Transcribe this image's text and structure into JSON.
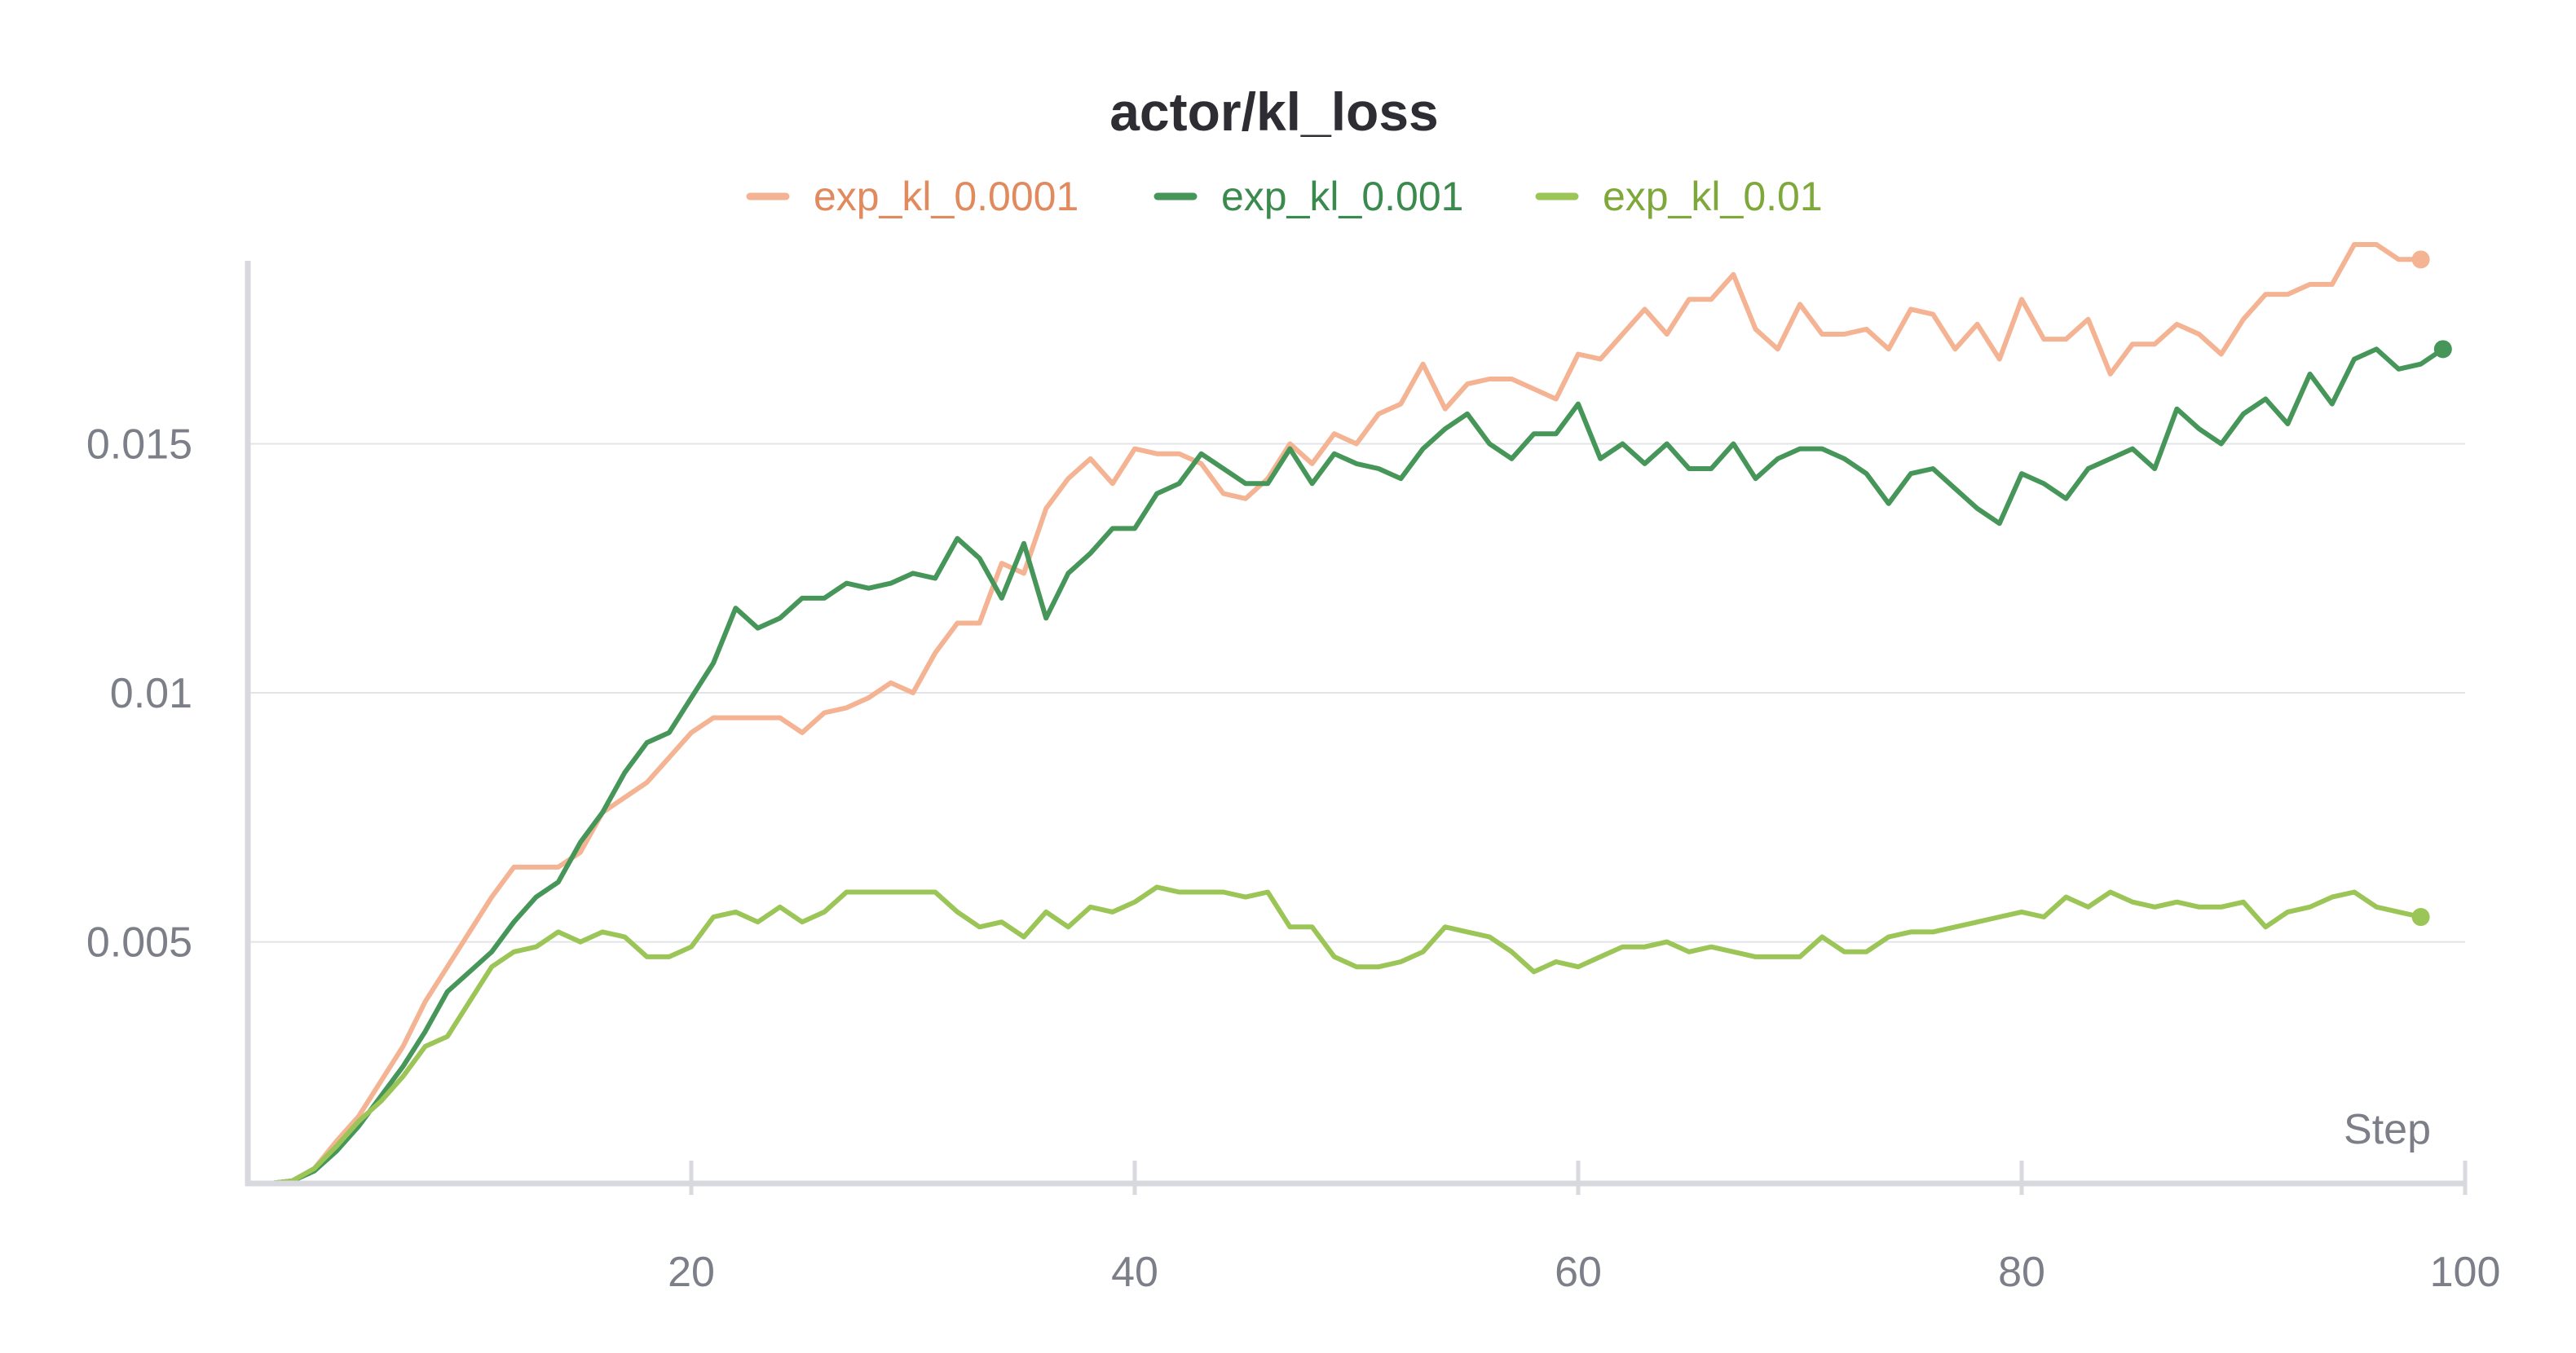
{
  "chart_data": {
    "type": "line",
    "title": "actor/kl_loss",
    "xlabel": "Step",
    "ylabel": "",
    "xlim": [
      0,
      100
    ],
    "ylim": [
      0.00015,
      0.019
    ],
    "x_ticks": [
      20,
      40,
      60,
      80,
      100
    ],
    "x_tick_labels": [
      "20",
      "40",
      "60",
      "80",
      "100"
    ],
    "y_ticks": [
      0.005,
      0.01,
      0.015
    ],
    "y_tick_labels": [
      "0.005",
      "0.01",
      "0.015"
    ],
    "grid": true,
    "legend_position": "top-center",
    "series": [
      {
        "name": "exp_kl_0.0001",
        "color": "#f4b393",
        "label_color": "#e08a5e",
        "x_start": 1,
        "values": [
          0.00015,
          0.0002,
          0.00045,
          0.001,
          0.0015,
          0.0022,
          0.0029,
          0.0038,
          0.0045,
          0.0052,
          0.0059,
          0.0065,
          0.0065,
          0.0065,
          0.0068,
          0.0076,
          0.0079,
          0.0082,
          0.0087,
          0.0092,
          0.0095,
          0.0095,
          0.0095,
          0.0095,
          0.0092,
          0.0096,
          0.0097,
          0.0099,
          0.0102,
          0.01,
          0.0108,
          0.0114,
          0.0114,
          0.0126,
          0.0124,
          0.0137,
          0.0143,
          0.0147,
          0.0142,
          0.0149,
          0.0148,
          0.0148,
          0.0146,
          0.014,
          0.0139,
          0.0143,
          0.015,
          0.0146,
          0.0152,
          0.015,
          0.0156,
          0.0158,
          0.0166,
          0.0157,
          0.0162,
          0.0163,
          0.0163,
          0.0161,
          0.0159,
          0.0168,
          0.0167,
          0.0172,
          0.0177,
          0.0172,
          0.0179,
          0.0179,
          0.0184,
          0.0173,
          0.0169,
          0.0178,
          0.0172,
          0.0172,
          0.0173,
          0.0169,
          0.0177,
          0.0176,
          0.0169,
          0.0174,
          0.0167,
          0.0179,
          0.0171,
          0.0171,
          0.0175,
          0.0164,
          0.017,
          0.017,
          0.0174,
          0.0172,
          0.0168,
          0.0175,
          0.018,
          0.018,
          0.0182,
          0.0182,
          0.019,
          0.019,
          0.0187,
          0.0187
        ]
      },
      {
        "name": "exp_kl_0.001",
        "color": "#46965a",
        "label_color": "#3a8a4e",
        "x_start": 1,
        "values": [
          0.00015,
          0.0002,
          0.0004,
          0.0008,
          0.0013,
          0.0019,
          0.0025,
          0.0032,
          0.004,
          0.0044,
          0.0048,
          0.0054,
          0.0059,
          0.0062,
          0.007,
          0.0076,
          0.0084,
          0.009,
          0.0092,
          0.0099,
          0.0106,
          0.0117,
          0.0113,
          0.0115,
          0.0119,
          0.0119,
          0.0122,
          0.0121,
          0.0122,
          0.0124,
          0.0123,
          0.0131,
          0.0127,
          0.0119,
          0.013,
          0.0115,
          0.0124,
          0.0128,
          0.0133,
          0.0133,
          0.014,
          0.0142,
          0.0148,
          0.0145,
          0.0142,
          0.0142,
          0.0149,
          0.0142,
          0.0148,
          0.0146,
          0.0145,
          0.0143,
          0.0149,
          0.0153,
          0.0156,
          0.015,
          0.0147,
          0.0152,
          0.0152,
          0.0158,
          0.0147,
          0.015,
          0.0146,
          0.015,
          0.0145,
          0.0145,
          0.015,
          0.0143,
          0.0147,
          0.0149,
          0.0149,
          0.0147,
          0.0144,
          0.0138,
          0.0144,
          0.0145,
          0.0141,
          0.0137,
          0.0134,
          0.0144,
          0.0142,
          0.0139,
          0.0145,
          0.0147,
          0.0149,
          0.0145,
          0.0157,
          0.0153,
          0.015,
          0.0156,
          0.0159,
          0.0154,
          0.0164,
          0.0158,
          0.0167,
          0.0169,
          0.0165,
          0.0166,
          0.0169
        ]
      },
      {
        "name": "exp_kl_0.01",
        "color": "#9cc557",
        "label_color": "#7ea83a",
        "x_start": 1,
        "values": [
          0.00015,
          0.0002,
          0.00045,
          0.0009,
          0.0014,
          0.0018,
          0.0023,
          0.0029,
          0.0031,
          0.0038,
          0.0045,
          0.0048,
          0.0049,
          0.0052,
          0.005,
          0.0052,
          0.0051,
          0.0047,
          0.0047,
          0.0049,
          0.0055,
          0.0056,
          0.0054,
          0.0057,
          0.0054,
          0.0056,
          0.006,
          0.006,
          0.006,
          0.006,
          0.006,
          0.0056,
          0.0053,
          0.0054,
          0.0051,
          0.0056,
          0.0053,
          0.0057,
          0.0056,
          0.0058,
          0.0061,
          0.006,
          0.006,
          0.006,
          0.0059,
          0.006,
          0.0053,
          0.0053,
          0.0047,
          0.0045,
          0.0045,
          0.0046,
          0.0048,
          0.0053,
          0.0052,
          0.0051,
          0.0048,
          0.0044,
          0.0046,
          0.0045,
          0.0047,
          0.0049,
          0.0049,
          0.005,
          0.0048,
          0.0049,
          0.0048,
          0.0047,
          0.0047,
          0.0047,
          0.0051,
          0.0048,
          0.0048,
          0.0051,
          0.0052,
          0.0052,
          0.0053,
          0.0054,
          0.0055,
          0.0056,
          0.0055,
          0.0059,
          0.0057,
          0.006,
          0.0058,
          0.0057,
          0.0058,
          0.0057,
          0.0057,
          0.0058,
          0.0053,
          0.0056,
          0.0057,
          0.0059,
          0.006,
          0.0057,
          0.0056,
          0.0055
        ]
      }
    ]
  }
}
